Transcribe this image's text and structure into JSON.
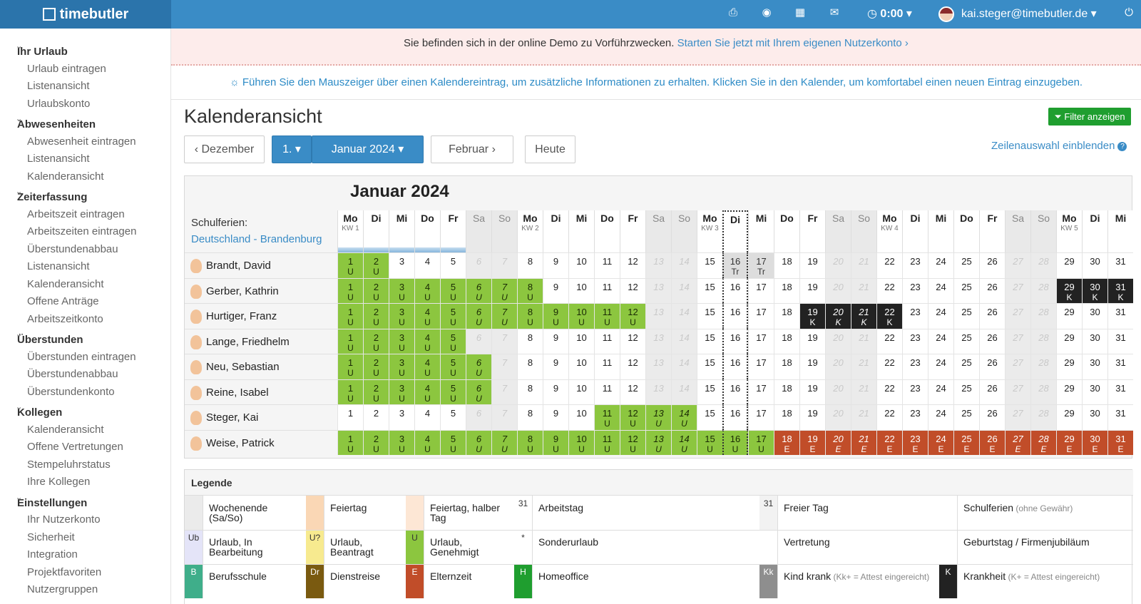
{
  "app": {
    "brand": "timebutler"
  },
  "topbar": {
    "time": "0:00",
    "user": "kai.steger@timebutler.de",
    "icons": [
      "print-icon",
      "globe-icon",
      "calendar-icon",
      "mail-icon",
      "clock-icon",
      "power-icon"
    ]
  },
  "sidebar": [
    {
      "title": "Ihr Urlaub",
      "items": [
        "Urlaub eintragen",
        "Listenansicht",
        "Urlaubskonto"
      ]
    },
    {
      "title": "Abwesenheiten",
      "items": [
        "Abwesenheit eintragen",
        "Listenansicht",
        "Kalenderansicht"
      ]
    },
    {
      "title": "Zeiterfassung",
      "items": [
        "Arbeitszeit eintragen",
        "Arbeitszeiten eintragen",
        "Überstundenabbau",
        "Listenansicht",
        "Kalenderansicht",
        "Offene Anträge",
        "Arbeitszeitkonto"
      ]
    },
    {
      "title": "Überstunden",
      "items": [
        "Überstunden eintragen",
        "Überstundenabbau",
        "Überstundenkonto"
      ]
    },
    {
      "title": "Kollegen",
      "items": [
        "Kalenderansicht",
        "Offene Vertretungen",
        "Stempeluhrstatus",
        "Ihre Kollegen"
      ]
    },
    {
      "title": "Einstellungen",
      "items": [
        "Ihr Nutzerkonto",
        "Sicherheit",
        "Integration",
        "Projektfavoriten",
        "Nutzergruppen"
      ]
    }
  ],
  "demo": {
    "text": "Sie befinden sich in der online Demo zu Vorführzwecken.",
    "link": "Starten Sie jetzt mit Ihrem eigenen Nutzerkonto ›"
  },
  "hint": "Führen Sie den Mauszeiger über einen Kalendereintrag, um zusätzliche Informationen zu erhalten. Klicken Sie in den Kalender, um komfortabel einen neuen Eintrag einzugeben.",
  "page": {
    "title": "Kalenderansicht",
    "filter": "Filter anzeigen",
    "rowsel": "Zeilenauswahl einblenden"
  },
  "nav": {
    "prev": "‹ Dezember",
    "day": "1. ▾",
    "month": "Januar 2024 ▾",
    "next": "Februar ›",
    "today": "Heute"
  },
  "calendar": {
    "title": "Januar 2024",
    "schulferien_label": "Schulferien:",
    "schulferien_region": "Deutschland - Brandenburg",
    "weekdays": [
      "Mo",
      "Di",
      "Mi",
      "Do",
      "Fr",
      "Sa",
      "So"
    ],
    "first_weekday": 0,
    "days": 31,
    "today": 16,
    "kw": {
      "1": "KW 1",
      "8": "KW 2",
      "15": "KW 3",
      "22": "KW 4",
      "29": "KW 5"
    },
    "schulferien_days": [
      1,
      2,
      3,
      4,
      5
    ],
    "employees": [
      {
        "name": "Brandt, David",
        "cells": {
          "1": "U",
          "2": "U",
          "16": "Tr",
          "17": "Tr"
        }
      },
      {
        "name": "Gerber, Kathrin",
        "cells": {
          "1": "U",
          "2": "U",
          "3": "U",
          "4": "U",
          "5": "U",
          "6": "U",
          "7": "U",
          "8": "U",
          "29": "K",
          "30": "K",
          "31": "K"
        }
      },
      {
        "name": "Hurtiger, Franz",
        "cells": {
          "1": "U",
          "2": "U",
          "3": "U",
          "4": "U",
          "5": "U",
          "6": "U",
          "7": "U",
          "8": "U",
          "9": "U",
          "10": "U",
          "11": "U",
          "12": "U",
          "19": "K",
          "20": "K",
          "21": "K",
          "22": "K"
        }
      },
      {
        "name": "Lange, Friedhelm",
        "cells": {
          "1": "U",
          "2": "U",
          "3": "U",
          "4": "U",
          "5": "U"
        }
      },
      {
        "name": "Neu, Sebastian",
        "cells": {
          "1": "U",
          "2": "U",
          "3": "U",
          "4": "U",
          "5": "U",
          "6": "U"
        }
      },
      {
        "name": "Reine, Isabel",
        "cells": {
          "1": "U",
          "2": "U",
          "3": "U",
          "4": "U",
          "5": "U",
          "6": "U"
        }
      },
      {
        "name": "Steger, Kai",
        "cells": {
          "11": "U",
          "12": "U",
          "13": "U",
          "14": "U"
        }
      },
      {
        "name": "Weise, Patrick",
        "cells": {
          "1": "U",
          "2": "U",
          "3": "U",
          "4": "U",
          "5": "U",
          "6": "U",
          "7": "U",
          "8": "U",
          "9": "U",
          "10": "U",
          "11": "U",
          "12": "U",
          "13": "U",
          "14": "U",
          "15": "U",
          "16": "U",
          "17": "U",
          "18": "E",
          "19": "E",
          "20": "E",
          "21": "E",
          "22": "E",
          "23": "E",
          "24": "E",
          "25": "E",
          "26": "E",
          "27": "E",
          "28": "E",
          "29": "E",
          "30": "E",
          "31": "E"
        }
      }
    ]
  },
  "legend": {
    "title": "Legende",
    "items": [
      {
        "swatch": "",
        "label": "Wochenende (Sa/So)",
        "note": "",
        "color": "#ebebeb"
      },
      {
        "swatch": "",
        "label": "Feiertag",
        "note": "",
        "color": "#fad7b5"
      },
      {
        "swatch": "",
        "label": "Feiertag, halber Tag",
        "note": "",
        "color": "#fde7d5"
      },
      {
        "swatch": "31",
        "label": "Arbeitstag",
        "note": "",
        "color": "#ffffff"
      },
      {
        "swatch": "31",
        "label": "Freier Tag",
        "note": "",
        "color": "#f2f2f2"
      },
      {
        "swatch": "",
        "label": "Schulferien",
        "note": "(ohne Gewähr)",
        "color": "#ffffff"
      },
      {
        "swatch": "Ub",
        "label": "Urlaub, In Bearbeitung",
        "note": "",
        "color": "#e4e4f8"
      },
      {
        "swatch": "U?",
        "label": "Urlaub, Beantragt",
        "note": "",
        "color": "#f7ea8f"
      },
      {
        "swatch": "U",
        "label": "Urlaub, Genehmigt",
        "note": "",
        "color": "#8cc63f"
      },
      {
        "swatch": "*",
        "label": "Sonderurlaub",
        "note": "",
        "color": "#ffffff"
      },
      {
        "swatch": "",
        "label": "Vertretung",
        "note": "",
        "color": "#ffffff"
      },
      {
        "swatch": "",
        "label": "Geburtstag / Firmenjubiläum",
        "note": "",
        "color": "#ffffff"
      },
      {
        "swatch": "B",
        "label": "Berufsschule",
        "note": "",
        "color": "#3fae8a"
      },
      {
        "swatch": "Dr",
        "label": "Dienstreise",
        "note": "",
        "color": "#7a5a10"
      },
      {
        "swatch": "E",
        "label": "Elternzeit",
        "note": "",
        "color": "#c14d29"
      },
      {
        "swatch": "H",
        "label": "Homeoffice",
        "note": "",
        "color": "#1f9e2f"
      },
      {
        "swatch": "Kk",
        "label": "Kind krank",
        "note": "(Kk+ = Attest eingereicht)",
        "color": "#8e8e8e"
      },
      {
        "swatch": "K",
        "label": "Krankheit",
        "note": "(K+ = Attest eingereicht)",
        "color": "#222222"
      }
    ]
  }
}
